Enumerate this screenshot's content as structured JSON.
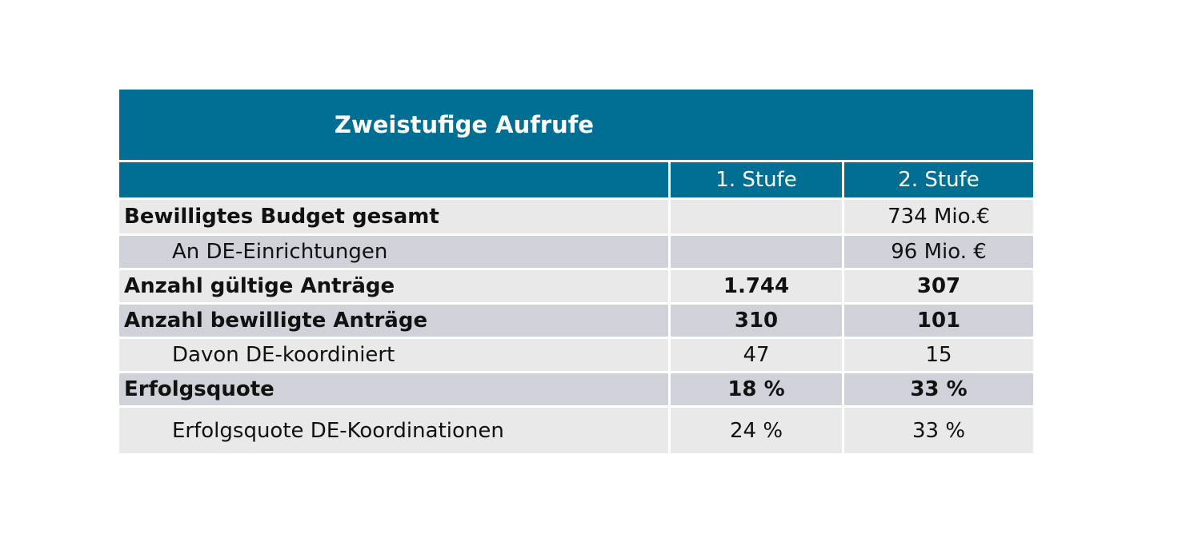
{
  "title": "Zweistufige Aufrufe",
  "columns": [
    "",
    "1. Stufe",
    "2. Stufe"
  ],
  "rows": [
    {
      "label": "Bewilligtes Budget gesamt",
      "c1": "",
      "c2": "734 Mio.€"
    },
    {
      "label": "An DE-Einrichtungen",
      "c1": "",
      "c2": "96 Mio. €"
    },
    {
      "label": "Anzahl gültige Anträge",
      "c1": "1.744",
      "c2": "307"
    },
    {
      "label": "Anzahl bewilligte Anträge",
      "c1": "310",
      "c2": "101"
    },
    {
      "label": "Davon DE-koordiniert",
      "c1": "47",
      "c2": "15"
    },
    {
      "label": "Erfolgsquote",
      "c1": "18 %",
      "c2": "33 %"
    },
    {
      "label": "Erfolgsquote DE-Koordinationen",
      "c1": "24 %",
      "c2": "33 %"
    }
  ],
  "colors": {
    "header": "#006f93",
    "row_light": "#e9e9ea",
    "row_dark": "#cfd2d8"
  }
}
